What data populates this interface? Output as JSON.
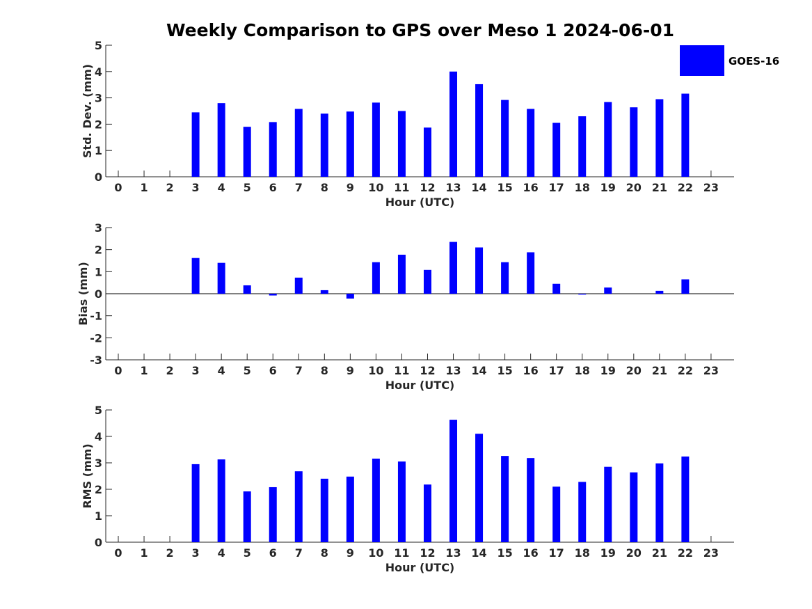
{
  "figure": {
    "title": "Weekly Comparison to GPS over Meso 1 2024-06-01",
    "legend": {
      "label": "GOES-16",
      "color": "#0000ff",
      "placement": "top-right"
    }
  },
  "chart_data": [
    {
      "id": "std",
      "type": "bar",
      "title": "Weekly Comparison to GPS over Meso 1 2024-06-01",
      "xlabel": "Hour (UTC)",
      "ylabel": "Std. Dev. (mm)",
      "ylim": [
        0,
        5
      ],
      "yticks": [
        "0",
        "1",
        "2",
        "3",
        "4",
        "5"
      ],
      "categories": [
        "0",
        "1",
        "2",
        "3",
        "4",
        "5",
        "6",
        "7",
        "8",
        "9",
        "10",
        "11",
        "12",
        "13",
        "14",
        "15",
        "16",
        "17",
        "18",
        "19",
        "20",
        "21",
        "22",
        "23"
      ],
      "series": [
        {
          "name": "GOES-16",
          "color": "#0000ff",
          "values": [
            null,
            null,
            null,
            2.45,
            2.8,
            1.9,
            2.08,
            2.58,
            2.4,
            2.48,
            2.82,
            2.5,
            1.87,
            4.0,
            3.52,
            2.92,
            2.58,
            2.05,
            2.3,
            2.84,
            2.64,
            2.95,
            3.16,
            null
          ]
        }
      ]
    },
    {
      "id": "bias",
      "type": "bar",
      "xlabel": "Hour (UTC)",
      "ylabel": "Bias (mm)",
      "ylim": [
        -3,
        3
      ],
      "yticks": [
        "-3",
        "-2",
        "-1",
        "0",
        "1",
        "2",
        "3"
      ],
      "categories": [
        "0",
        "1",
        "2",
        "3",
        "4",
        "5",
        "6",
        "7",
        "8",
        "9",
        "10",
        "11",
        "12",
        "13",
        "14",
        "15",
        "16",
        "17",
        "18",
        "19",
        "20",
        "21",
        "22",
        "23"
      ],
      "series": [
        {
          "name": "GOES-16",
          "color": "#0000ff",
          "values": [
            null,
            null,
            null,
            1.62,
            1.4,
            0.38,
            -0.08,
            0.73,
            0.16,
            -0.22,
            1.43,
            1.77,
            1.08,
            2.35,
            2.1,
            1.43,
            1.88,
            0.45,
            -0.04,
            0.28,
            null,
            0.13,
            0.65,
            null
          ]
        }
      ]
    },
    {
      "id": "rms",
      "type": "bar",
      "xlabel": "Hour (UTC)",
      "ylabel": "RMS (mm)",
      "ylim": [
        0,
        5
      ],
      "yticks": [
        "0",
        "1",
        "2",
        "3",
        "4",
        "5"
      ],
      "categories": [
        "0",
        "1",
        "2",
        "3",
        "4",
        "5",
        "6",
        "7",
        "8",
        "9",
        "10",
        "11",
        "12",
        "13",
        "14",
        "15",
        "16",
        "17",
        "18",
        "19",
        "20",
        "21",
        "22",
        "23"
      ],
      "series": [
        {
          "name": "GOES-16",
          "color": "#0000ff",
          "values": [
            null,
            null,
            null,
            2.95,
            3.13,
            1.92,
            2.08,
            2.68,
            2.4,
            2.48,
            3.16,
            3.05,
            2.18,
            4.63,
            4.1,
            3.26,
            3.18,
            2.1,
            2.28,
            2.85,
            2.64,
            2.98,
            3.24,
            null
          ]
        }
      ]
    }
  ]
}
